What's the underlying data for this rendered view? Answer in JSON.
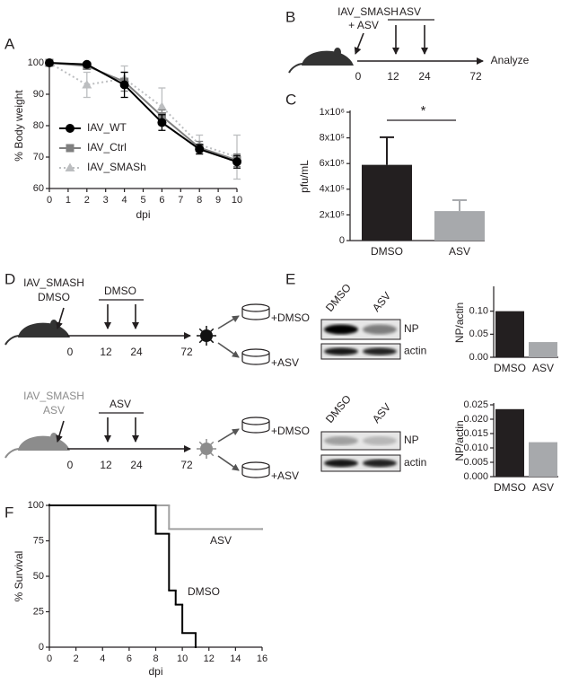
{
  "panel_labels": [
    "A",
    "B",
    "C",
    "D",
    "E",
    "F"
  ],
  "chart_data": [
    {
      "type": "line",
      "xlabel": "dpi",
      "ylabel": "% Body weight",
      "x": [
        0,
        2,
        4,
        6,
        8,
        10
      ],
      "xlim": [
        0,
        10
      ],
      "xticks": [
        0,
        1,
        2,
        3,
        4,
        5,
        6,
        7,
        8,
        9,
        10
      ],
      "ylim": [
        60,
        100
      ],
      "yticks": [
        60,
        70,
        80,
        90,
        100
      ],
      "series": [
        {
          "name": "IAV_WT",
          "color": "#000000",
          "marker": "circle",
          "line_style": "solid",
          "values": [
            100,
            99.5,
            93,
            81,
            72.5,
            68.5
          ],
          "errors": [
            0,
            0.5,
            4,
            2.5,
            1.5,
            2
          ]
        },
        {
          "name": "IAV_Ctrl",
          "color": "#808080",
          "marker": "square",
          "line_style": "solid",
          "values": [
            100,
            99,
            94,
            83,
            73,
            69
          ],
          "errors": [
            0,
            0.5,
            3,
            2,
            2,
            2
          ]
        },
        {
          "name": "IAV_SMASh",
          "color": "#bcbec0",
          "marker": "triangle",
          "line_style": "dotted",
          "values": [
            100,
            93,
            95,
            86,
            74,
            70
          ],
          "errors": [
            0,
            4,
            4,
            6,
            3,
            7
          ]
        }
      ]
    },
    {
      "type": "bar",
      "ylabel": "pfu/mL",
      "categories": [
        "DMSO",
        "ASV"
      ],
      "values": [
        590000,
        230000
      ],
      "errors": [
        215000,
        85000
      ],
      "colors": [
        "#231f20",
        "#a7a9ac"
      ],
      "ylim": [
        0,
        1000000
      ],
      "yticks": [
        0,
        {
          "value": 200000,
          "label": "2x10⁵"
        },
        {
          "value": 400000,
          "label": "4x10⁵"
        },
        {
          "value": 600000,
          "label": "6x10⁵"
        },
        {
          "value": 800000,
          "label": "8x10⁵"
        },
        {
          "value": 1000000,
          "label": "1x10⁶"
        }
      ],
      "annotation": "*"
    },
    {
      "type": "bar",
      "ylabel": "NP/actin",
      "categories": [
        "DMSO",
        "ASV"
      ],
      "values": [
        0.1,
        0.033
      ],
      "colors": [
        "#231f20",
        "#a7a9ac"
      ],
      "ylim": [
        0,
        0.15
      ],
      "yticks": [
        {
          "value": 0,
          "label": "0.00"
        },
        0.05,
        {
          "value": 0.1,
          "label": "0.10"
        }
      ]
    },
    {
      "type": "bar",
      "ylabel": "NP/actin",
      "categories": [
        "DMSO",
        "ASV"
      ],
      "values": [
        0.0235,
        0.012
      ],
      "colors": [
        "#231f20",
        "#a7a9ac"
      ],
      "ylim": [
        0,
        0.025
      ],
      "yticks": [
        {
          "value": 0,
          "label": "0.000"
        },
        0.005,
        {
          "value": 0.01,
          "label": "0.010"
        },
        0.015,
        {
          "value": 0.02,
          "label": "0.020"
        },
        0.025
      ]
    },
    {
      "type": "step",
      "xlabel": "dpi",
      "ylabel": "% Survival",
      "xlim": [
        0,
        16
      ],
      "xticks": [
        0,
        2,
        4,
        6,
        8,
        10,
        12,
        14,
        16
      ],
      "ylim": [
        0,
        100
      ],
      "yticks": [
        0,
        25,
        50,
        75,
        100
      ],
      "series": [
        {
          "name": "ASV",
          "color": "#a0a0a0",
          "x": [
            0,
            9,
            16
          ],
          "values": [
            100,
            83.3,
            83.3
          ]
        },
        {
          "name": "DMSO",
          "color": "#000000",
          "x": [
            0,
            8,
            9,
            9.5,
            10,
            11
          ],
          "values": [
            100,
            80,
            40,
            30,
            10,
            0
          ]
        }
      ]
    }
  ],
  "diagrams": {
    "B": {
      "infection": [
        "IAV_SMASH",
        "+ ASV"
      ],
      "treatment": "ASV",
      "times": [
        0,
        12,
        24,
        72
      ],
      "endpoint": "Analyze"
    },
    "D": [
      {
        "infection": [
          "IAV_SMASH",
          "DMSO"
        ],
        "treatment": "DMSO",
        "times": [
          0,
          12,
          24,
          72
        ],
        "outcomes": [
          "+DMSO",
          "+ASV"
        ]
      },
      {
        "infection": [
          "IAV_SMASH",
          "ASV"
        ],
        "treatment": "ASV",
        "times": [
          0,
          12,
          24,
          72
        ],
        "outcomes": [
          "+DMSO",
          "+ASV"
        ]
      }
    ]
  },
  "blots": [
    {
      "lanes": [
        "DMSO",
        "ASV"
      ],
      "bands": [
        "NP",
        "actin"
      ]
    },
    {
      "lanes": [
        "DMSO",
        "ASV"
      ],
      "bands": [
        "NP",
        "actin"
      ]
    }
  ]
}
